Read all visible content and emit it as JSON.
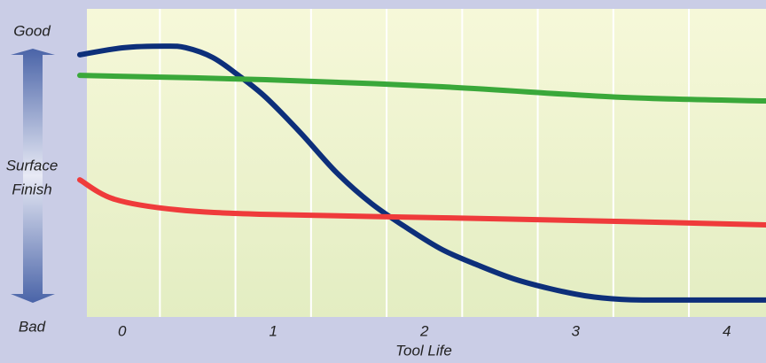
{
  "chart_data": {
    "type": "line",
    "xlabel": "Tool Life",
    "ylabel": [
      "Surface",
      "Finish"
    ],
    "y_top_label": "Good",
    "y_bottom_label": "Bad",
    "xlim": [
      -0.28,
      4.26
    ],
    "ylim": [
      0,
      100
    ],
    "xticks": [
      0,
      1,
      2,
      3,
      4
    ],
    "xgrid": [
      0.25,
      0.75,
      1.25,
      1.75,
      2.25,
      2.75,
      3.25,
      3.75
    ],
    "grid": true,
    "series": [
      {
        "color": "#0d2f7a",
        "x": [
          -0.28,
          0.01,
          0.28,
          0.42,
          0.6,
          0.77,
          0.95,
          1.18,
          1.42,
          1.65,
          1.89,
          2.12,
          2.36,
          2.59,
          2.83,
          3.06,
          3.3,
          3.53,
          4.26
        ],
        "values": [
          85.1,
          87.4,
          87.9,
          87.4,
          84.2,
          78.4,
          71.3,
          59.8,
          46.8,
          36.8,
          28.7,
          21.8,
          16.7,
          12.4,
          9.2,
          6.9,
          5.7,
          5.5,
          5.5
        ]
      },
      {
        "color": "#3aa83a",
        "x": [
          -0.28,
          0.95,
          2.12,
          3.3,
          4.26
        ],
        "values": [
          78.4,
          77.0,
          74.7,
          71.3,
          70.1
        ]
      },
      {
        "color": "#ef3b3b",
        "x": [
          -0.28,
          -0.05,
          0.36,
          0.95,
          2.12,
          3.3,
          4.26
        ],
        "values": [
          44.5,
          38.2,
          34.8,
          33.3,
          32.2,
          31.0,
          29.9
        ]
      }
    ]
  }
}
